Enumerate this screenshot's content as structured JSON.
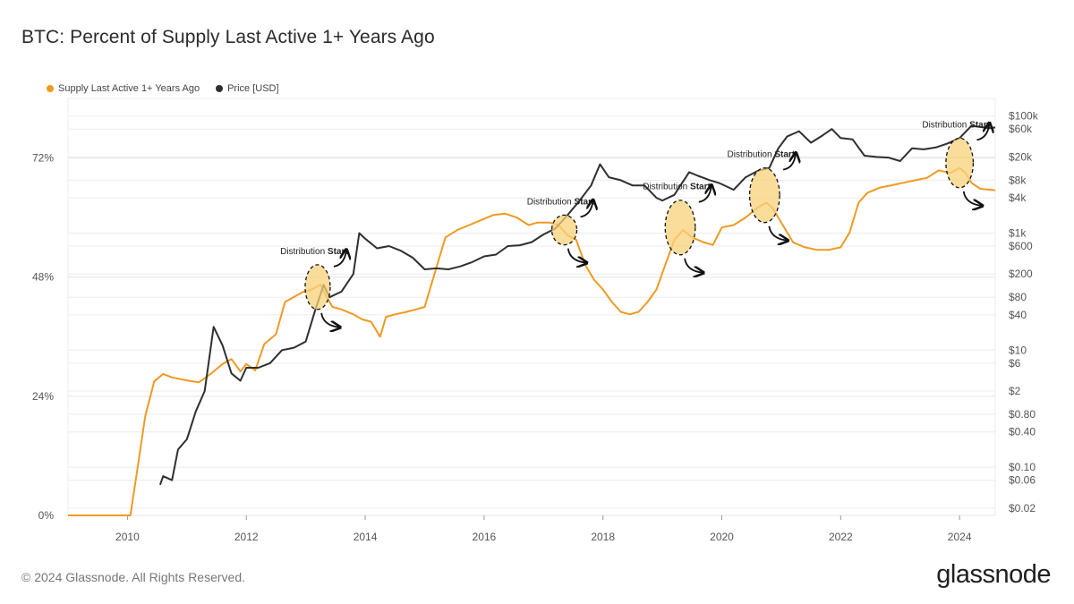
{
  "title": "BTC: Percent of Supply Last Active 1+ Years Ago",
  "footer": "© 2024 Glassnode. All Rights Reserved.",
  "brand": "glassnode",
  "colors": {
    "supply": "#f09a21",
    "price": "#2f2f2f",
    "highlight": "#f9d27a",
    "grid": "#ececec"
  },
  "chart_data": {
    "type": "line",
    "grid": true,
    "legend_position": "top-left",
    "x_range": [
      2009.0,
      2024.6
    ],
    "x_ticks": [
      2010,
      2012,
      2014,
      2016,
      2018,
      2020,
      2022,
      2024
    ],
    "y_left": {
      "unit": "percent",
      "range": [
        0,
        84
      ],
      "ticks": [
        0,
        24,
        48,
        72
      ],
      "tick_labels": [
        "0%",
        "24%",
        "48%",
        "72%"
      ]
    },
    "y_right": {
      "scale": "log",
      "range": [
        0.015,
        200000
      ],
      "ticks": [
        0.02,
        0.06,
        0.1,
        0.4,
        0.8,
        2,
        6,
        10,
        40,
        80,
        200,
        600,
        1000,
        4000,
        8000,
        20000,
        60000,
        100000
      ],
      "tick_labels": [
        "$0.02",
        "$0.06",
        "$0.10",
        "$0.40",
        "$0.80",
        "$2",
        "$6",
        "$10",
        "$40",
        "$80",
        "$200",
        "$600",
        "$1k",
        "$4k",
        "$8k",
        "$20k",
        "$60k",
        "$100k"
      ]
    },
    "series": [
      {
        "name": "Supply Last Active 1+ Years Ago",
        "axis": "left",
        "points": [
          [
            2009.0,
            0
          ],
          [
            2010.05,
            0
          ],
          [
            2010.15,
            8
          ],
          [
            2010.3,
            20
          ],
          [
            2010.45,
            27
          ],
          [
            2010.6,
            28.5
          ],
          [
            2010.75,
            27.8
          ],
          [
            2011.0,
            27.2
          ],
          [
            2011.2,
            26.8
          ],
          [
            2011.4,
            28.5
          ],
          [
            2011.6,
            30.5
          ],
          [
            2011.75,
            31.5
          ],
          [
            2011.9,
            29
          ],
          [
            2012.0,
            30.5
          ],
          [
            2012.15,
            29.2
          ],
          [
            2012.3,
            34.5
          ],
          [
            2012.5,
            36.5
          ],
          [
            2012.65,
            43
          ],
          [
            2012.8,
            44
          ],
          [
            2012.95,
            45
          ],
          [
            2013.1,
            45.5
          ],
          [
            2013.25,
            46.5
          ],
          [
            2013.35,
            44
          ],
          [
            2013.45,
            42
          ],
          [
            2013.6,
            41.5
          ],
          [
            2013.8,
            40.5
          ],
          [
            2013.95,
            39.5
          ],
          [
            2014.1,
            39
          ],
          [
            2014.25,
            36
          ],
          [
            2014.35,
            40
          ],
          [
            2014.5,
            40.5
          ],
          [
            2014.7,
            41
          ],
          [
            2014.85,
            41.5
          ],
          [
            2015.0,
            42
          ],
          [
            2015.2,
            50
          ],
          [
            2015.35,
            56
          ],
          [
            2015.55,
            57.5
          ],
          [
            2015.75,
            58.5
          ],
          [
            2015.95,
            59.5
          ],
          [
            2016.15,
            60.5
          ],
          [
            2016.35,
            60.8
          ],
          [
            2016.55,
            60
          ],
          [
            2016.75,
            58.5
          ],
          [
            2016.9,
            59
          ],
          [
            2017.1,
            59
          ],
          [
            2017.25,
            58.5
          ],
          [
            2017.4,
            56.5
          ],
          [
            2017.55,
            55.5
          ],
          [
            2017.7,
            50.5
          ],
          [
            2017.85,
            47.5
          ],
          [
            2018.0,
            45.5
          ],
          [
            2018.15,
            43
          ],
          [
            2018.3,
            41
          ],
          [
            2018.45,
            40.5
          ],
          [
            2018.6,
            41
          ],
          [
            2018.75,
            43
          ],
          [
            2018.9,
            45.5
          ],
          [
            2019.05,
            50.5
          ],
          [
            2019.2,
            55.5
          ],
          [
            2019.35,
            57.5
          ],
          [
            2019.5,
            56
          ],
          [
            2019.7,
            55
          ],
          [
            2019.85,
            54.5
          ],
          [
            2020.0,
            58
          ],
          [
            2020.2,
            58.5
          ],
          [
            2020.4,
            60
          ],
          [
            2020.6,
            62
          ],
          [
            2020.75,
            63
          ],
          [
            2020.85,
            62
          ],
          [
            2021.0,
            59
          ],
          [
            2021.2,
            55
          ],
          [
            2021.4,
            54
          ],
          [
            2021.6,
            53.5
          ],
          [
            2021.8,
            53.5
          ],
          [
            2022.0,
            54
          ],
          [
            2022.15,
            57
          ],
          [
            2022.3,
            63
          ],
          [
            2022.45,
            65
          ],
          [
            2022.65,
            66
          ],
          [
            2022.85,
            66.5
          ],
          [
            2023.05,
            67
          ],
          [
            2023.25,
            67.5
          ],
          [
            2023.45,
            68
          ],
          [
            2023.65,
            69.5
          ],
          [
            2023.85,
            69
          ],
          [
            2024.0,
            70
          ],
          [
            2024.1,
            69
          ],
          [
            2024.2,
            67
          ],
          [
            2024.35,
            65.8
          ],
          [
            2024.6,
            65.5
          ]
        ]
      },
      {
        "name": "Price [USD]",
        "axis": "right",
        "points": [
          [
            2010.55,
            0.05
          ],
          [
            2010.6,
            0.07
          ],
          [
            2010.75,
            0.06
          ],
          [
            2010.85,
            0.2
          ],
          [
            2011.0,
            0.3
          ],
          [
            2011.15,
            0.9
          ],
          [
            2011.3,
            2
          ],
          [
            2011.45,
            25
          ],
          [
            2011.6,
            12
          ],
          [
            2011.75,
            4
          ],
          [
            2011.9,
            3
          ],
          [
            2012.0,
            5
          ],
          [
            2012.2,
            5
          ],
          [
            2012.4,
            6
          ],
          [
            2012.6,
            10
          ],
          [
            2012.8,
            11
          ],
          [
            2013.0,
            14
          ],
          [
            2013.15,
            45
          ],
          [
            2013.3,
            130
          ],
          [
            2013.4,
            80
          ],
          [
            2013.6,
            100
          ],
          [
            2013.8,
            200
          ],
          [
            2013.9,
            1000
          ],
          [
            2014.0,
            800
          ],
          [
            2014.2,
            550
          ],
          [
            2014.4,
            600
          ],
          [
            2014.6,
            500
          ],
          [
            2014.8,
            380
          ],
          [
            2015.0,
            240
          ],
          [
            2015.2,
            250
          ],
          [
            2015.4,
            240
          ],
          [
            2015.6,
            270
          ],
          [
            2015.8,
            320
          ],
          [
            2016.0,
            400
          ],
          [
            2016.2,
            430
          ],
          [
            2016.4,
            600
          ],
          [
            2016.6,
            620
          ],
          [
            2016.8,
            700
          ],
          [
            2017.0,
            950
          ],
          [
            2017.2,
            1200
          ],
          [
            2017.4,
            2000
          ],
          [
            2017.6,
            3500
          ],
          [
            2017.8,
            6500
          ],
          [
            2017.95,
            15000
          ],
          [
            2018.1,
            9000
          ],
          [
            2018.3,
            8000
          ],
          [
            2018.5,
            6500
          ],
          [
            2018.7,
            6500
          ],
          [
            2018.9,
            4000
          ],
          [
            2019.0,
            3600
          ],
          [
            2019.2,
            4500
          ],
          [
            2019.45,
            11000
          ],
          [
            2019.6,
            9500
          ],
          [
            2019.8,
            8000
          ],
          [
            2019.95,
            7200
          ],
          [
            2020.2,
            5500
          ],
          [
            2020.4,
            9000
          ],
          [
            2020.6,
            11500
          ],
          [
            2020.8,
            13000
          ],
          [
            2020.95,
            28000
          ],
          [
            2021.1,
            45000
          ],
          [
            2021.3,
            55000
          ],
          [
            2021.5,
            35000
          ],
          [
            2021.7,
            47000
          ],
          [
            2021.85,
            60000
          ],
          [
            2022.0,
            42000
          ],
          [
            2022.2,
            40000
          ],
          [
            2022.4,
            21000
          ],
          [
            2022.6,
            20000
          ],
          [
            2022.8,
            19500
          ],
          [
            2023.0,
            17000
          ],
          [
            2023.2,
            28000
          ],
          [
            2023.4,
            27000
          ],
          [
            2023.6,
            29000
          ],
          [
            2023.8,
            34000
          ],
          [
            2024.0,
            42000
          ],
          [
            2024.2,
            68000
          ],
          [
            2024.35,
            65000
          ],
          [
            2024.5,
            62000
          ],
          [
            2024.6,
            64000
          ]
        ]
      }
    ],
    "annotations": [
      {
        "label_normal": "Distribution ",
        "label_bold": "Start",
        "x": 2013.2,
        "pct": 46,
        "h_pct": 9
      },
      {
        "label_normal": "Distribution ",
        "label_bold": "Start",
        "x": 2017.35,
        "pct": 57.5,
        "h_pct": 6
      },
      {
        "label_normal": "Distribution ",
        "label_bold": "Start",
        "x": 2019.3,
        "pct": 58,
        "h_pct": 11
      },
      {
        "label_normal": "Distribution ",
        "label_bold": "Start",
        "x": 2020.72,
        "pct": 64.5,
        "h_pct": 11
      },
      {
        "label_normal": "Distribution ",
        "label_bold": "Start",
        "x": 2024.0,
        "pct": 71,
        "h_pct": 10
      }
    ]
  }
}
